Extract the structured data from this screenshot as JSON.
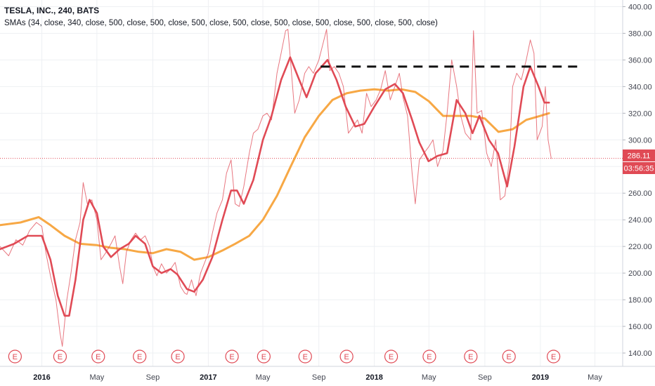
{
  "header": {
    "title": "TESLA, INC., 240, BATS",
    "indicator": "SMAs (34, close, 340, close, 500, close, 500, close, 500, close, 500, close, 500, close, 500, close, 500, close, 500, close)"
  },
  "price_badge": {
    "value": "286.11",
    "countdown": "03:56:35",
    "color": "#e04a55"
  },
  "event_marker_label": "E",
  "colors": {
    "price": "#e04a55",
    "sma_fast": "#e04a55",
    "sma_slow": "#f7a845",
    "resistance": "#111111",
    "grid": "#eef0f3"
  },
  "chart_data": {
    "type": "line",
    "y_axis": {
      "min": 130,
      "max": 405,
      "ticks": [
        "140.00",
        "160.00",
        "180.00",
        "200.00",
        "220.00",
        "240.00",
        "260.00",
        "280.00",
        "300.00",
        "320.00",
        "340.00",
        "360.00",
        "380.00",
        "400.00"
      ],
      "position": "right"
    },
    "x_axis": {
      "range": [
        "2015-10-01",
        "2019-07-01"
      ],
      "ticks": [
        {
          "label": "2016",
          "date": "2016-01-01",
          "bold": true
        },
        {
          "label": "May",
          "date": "2016-05-01",
          "bold": false
        },
        {
          "label": "Sep",
          "date": "2016-09-01",
          "bold": false
        },
        {
          "label": "2017",
          "date": "2017-01-01",
          "bold": true
        },
        {
          "label": "May",
          "date": "2017-05-01",
          "bold": false
        },
        {
          "label": "Sep",
          "date": "2017-09-01",
          "bold": false
        },
        {
          "label": "2018",
          "date": "2018-01-01",
          "bold": true
        },
        {
          "label": "May",
          "date": "2018-05-01",
          "bold": false
        },
        {
          "label": "Sep",
          "date": "2018-09-01",
          "bold": false
        },
        {
          "label": "2019",
          "date": "2019-01-01",
          "bold": true
        },
        {
          "label": "May",
          "date": "2019-05-01",
          "bold": false
        }
      ]
    },
    "series": [
      {
        "kind": "price",
        "color": "#e04a55",
        "points": [
          [
            "2015-10-01",
            220
          ],
          [
            "2015-10-20",
            213
          ],
          [
            "2015-11-05",
            225
          ],
          [
            "2015-11-20",
            221
          ],
          [
            "2015-12-05",
            232
          ],
          [
            "2015-12-20",
            238
          ],
          [
            "2016-01-01",
            235
          ],
          [
            "2016-01-10",
            215
          ],
          [
            "2016-01-20",
            198
          ],
          [
            "2016-02-01",
            180
          ],
          [
            "2016-02-10",
            155
          ],
          [
            "2016-02-15",
            145
          ],
          [
            "2016-02-25",
            180
          ],
          [
            "2016-03-05",
            200
          ],
          [
            "2016-03-15",
            225
          ],
          [
            "2016-03-25",
            238
          ],
          [
            "2016-04-01",
            268
          ],
          [
            "2016-04-10",
            252
          ],
          [
            "2016-04-20",
            255
          ],
          [
            "2016-05-01",
            240
          ],
          [
            "2016-05-10",
            210
          ],
          [
            "2016-05-20",
            215
          ],
          [
            "2016-06-01",
            222
          ],
          [
            "2016-06-10",
            228
          ],
          [
            "2016-06-20",
            205
          ],
          [
            "2016-06-27",
            192
          ],
          [
            "2016-07-05",
            216
          ],
          [
            "2016-07-15",
            225
          ],
          [
            "2016-07-25",
            230
          ],
          [
            "2016-08-05",
            225
          ],
          [
            "2016-08-15",
            228
          ],
          [
            "2016-08-25",
            220
          ],
          [
            "2016-09-01",
            205
          ],
          [
            "2016-09-10",
            198
          ],
          [
            "2016-09-20",
            207
          ],
          [
            "2016-10-01",
            200
          ],
          [
            "2016-10-10",
            203
          ],
          [
            "2016-10-20",
            208
          ],
          [
            "2016-11-01",
            190
          ],
          [
            "2016-11-10",
            185
          ],
          [
            "2016-11-15",
            184
          ],
          [
            "2016-11-25",
            195
          ],
          [
            "2016-12-05",
            183
          ],
          [
            "2016-12-15",
            200
          ],
          [
            "2017-01-01",
            215
          ],
          [
            "2017-01-10",
            230
          ],
          [
            "2017-01-20",
            245
          ],
          [
            "2017-02-01",
            255
          ],
          [
            "2017-02-10",
            275
          ],
          [
            "2017-02-20",
            285
          ],
          [
            "2017-03-01",
            252
          ],
          [
            "2017-03-10",
            250
          ],
          [
            "2017-03-20",
            265
          ],
          [
            "2017-04-01",
            290
          ],
          [
            "2017-04-10",
            305
          ],
          [
            "2017-04-20",
            308
          ],
          [
            "2017-05-01",
            318
          ],
          [
            "2017-05-10",
            320
          ],
          [
            "2017-05-20",
            315
          ],
          [
            "2017-06-01",
            350
          ],
          [
            "2017-06-10",
            365
          ],
          [
            "2017-06-20",
            382
          ],
          [
            "2017-06-25",
            383
          ],
          [
            "2017-07-01",
            358
          ],
          [
            "2017-07-10",
            320
          ],
          [
            "2017-07-20",
            330
          ],
          [
            "2017-08-01",
            350
          ],
          [
            "2017-08-10",
            355
          ],
          [
            "2017-08-20",
            350
          ],
          [
            "2017-09-01",
            360
          ],
          [
            "2017-09-10",
            372
          ],
          [
            "2017-09-18",
            383
          ],
          [
            "2017-09-25",
            352
          ],
          [
            "2017-10-05",
            355
          ],
          [
            "2017-10-15",
            350
          ],
          [
            "2017-10-25",
            340
          ],
          [
            "2017-11-05",
            305
          ],
          [
            "2017-11-15",
            310
          ],
          [
            "2017-11-25",
            315
          ],
          [
            "2017-12-05",
            305
          ],
          [
            "2017-12-15",
            335
          ],
          [
            "2017-12-25",
            325
          ],
          [
            "2018-01-05",
            330
          ],
          [
            "2018-01-15",
            338
          ],
          [
            "2018-01-25",
            352
          ],
          [
            "2018-02-05",
            330
          ],
          [
            "2018-02-15",
            340
          ],
          [
            "2018-02-25",
            350
          ],
          [
            "2018-03-05",
            332
          ],
          [
            "2018-03-15",
            318
          ],
          [
            "2018-03-25",
            275
          ],
          [
            "2018-04-01",
            252
          ],
          [
            "2018-04-10",
            285
          ],
          [
            "2018-04-20",
            290
          ],
          [
            "2018-05-01",
            295
          ],
          [
            "2018-05-10",
            300
          ],
          [
            "2018-05-20",
            280
          ],
          [
            "2018-06-01",
            292
          ],
          [
            "2018-06-10",
            320
          ],
          [
            "2018-06-20",
            360
          ],
          [
            "2018-07-01",
            340
          ],
          [
            "2018-07-10",
            318
          ],
          [
            "2018-07-20",
            305
          ],
          [
            "2018-08-01",
            300
          ],
          [
            "2018-08-07",
            382
          ],
          [
            "2018-08-15",
            320
          ],
          [
            "2018-08-25",
            322
          ],
          [
            "2018-09-05",
            290
          ],
          [
            "2018-09-15",
            280
          ],
          [
            "2018-09-25",
            300
          ],
          [
            "2018-10-05",
            255
          ],
          [
            "2018-10-15",
            258
          ],
          [
            "2018-10-25",
            285
          ],
          [
            "2018-11-01",
            340
          ],
          [
            "2018-11-10",
            350
          ],
          [
            "2018-11-20",
            345
          ],
          [
            "2018-12-01",
            360
          ],
          [
            "2018-12-10",
            375
          ],
          [
            "2018-12-18",
            365
          ],
          [
            "2018-12-25",
            300
          ],
          [
            "2019-01-05",
            310
          ],
          [
            "2019-01-12",
            340
          ],
          [
            "2019-01-18",
            300
          ],
          [
            "2019-01-25",
            286
          ]
        ]
      },
      {
        "kind": "sma_fast",
        "color": "#e04a55",
        "points": [
          [
            "2015-10-01",
            218
          ],
          [
            "2015-11-01",
            222
          ],
          [
            "2015-12-01",
            228
          ],
          [
            "2016-01-01",
            228
          ],
          [
            "2016-01-20",
            210
          ],
          [
            "2016-02-05",
            183
          ],
          [
            "2016-02-20",
            168
          ],
          [
            "2016-03-01",
            168
          ],
          [
            "2016-03-15",
            195
          ],
          [
            "2016-04-01",
            240
          ],
          [
            "2016-04-15",
            255
          ],
          [
            "2016-05-01",
            245
          ],
          [
            "2016-05-15",
            220
          ],
          [
            "2016-06-01",
            212
          ],
          [
            "2016-06-20",
            218
          ],
          [
            "2016-07-10",
            222
          ],
          [
            "2016-07-25",
            228
          ],
          [
            "2016-08-15",
            222
          ],
          [
            "2016-09-01",
            205
          ],
          [
            "2016-09-20",
            200
          ],
          [
            "2016-10-10",
            203
          ],
          [
            "2016-10-25",
            199
          ],
          [
            "2016-11-15",
            188
          ],
          [
            "2016-12-01",
            186
          ],
          [
            "2016-12-20",
            195
          ],
          [
            "2017-01-10",
            212
          ],
          [
            "2017-02-01",
            240
          ],
          [
            "2017-02-20",
            262
          ],
          [
            "2017-03-05",
            262
          ],
          [
            "2017-03-20",
            252
          ],
          [
            "2017-04-10",
            270
          ],
          [
            "2017-05-01",
            300
          ],
          [
            "2017-05-20",
            318
          ],
          [
            "2017-06-10",
            345
          ],
          [
            "2017-06-30",
            362
          ],
          [
            "2017-07-20",
            345
          ],
          [
            "2017-08-05",
            332
          ],
          [
            "2017-08-25",
            350
          ],
          [
            "2017-09-20",
            360
          ],
          [
            "2017-10-10",
            345
          ],
          [
            "2017-10-30",
            325
          ],
          [
            "2017-11-20",
            310
          ],
          [
            "2017-12-10",
            312
          ],
          [
            "2018-01-01",
            325
          ],
          [
            "2018-01-25",
            338
          ],
          [
            "2018-02-15",
            342
          ],
          [
            "2018-03-05",
            335
          ],
          [
            "2018-03-25",
            315
          ],
          [
            "2018-04-10",
            298
          ],
          [
            "2018-04-30",
            284
          ],
          [
            "2018-05-20",
            288
          ],
          [
            "2018-06-10",
            290
          ],
          [
            "2018-07-01",
            330
          ],
          [
            "2018-07-20",
            320
          ],
          [
            "2018-08-05",
            305
          ],
          [
            "2018-08-20",
            318
          ],
          [
            "2018-09-10",
            300
          ],
          [
            "2018-09-30",
            290
          ],
          [
            "2018-10-20",
            265
          ],
          [
            "2018-11-05",
            295
          ],
          [
            "2018-11-25",
            340
          ],
          [
            "2018-12-10",
            355
          ],
          [
            "2018-12-28",
            340
          ],
          [
            "2019-01-10",
            328
          ],
          [
            "2019-01-20",
            328
          ]
        ]
      },
      {
        "kind": "sma_slow",
        "color": "#f7a845",
        "points": [
          [
            "2015-10-01",
            236
          ],
          [
            "2015-11-15",
            238
          ],
          [
            "2015-12-25",
            242
          ],
          [
            "2016-01-20",
            236
          ],
          [
            "2016-02-20",
            228
          ],
          [
            "2016-03-25",
            222
          ],
          [
            "2016-05-01",
            221
          ],
          [
            "2016-06-01",
            219
          ],
          [
            "2016-07-01",
            218
          ],
          [
            "2016-08-01",
            216
          ],
          [
            "2016-09-01",
            215
          ],
          [
            "2016-10-01",
            218
          ],
          [
            "2016-11-01",
            216
          ],
          [
            "2016-12-01",
            210
          ],
          [
            "2017-01-01",
            212
          ],
          [
            "2017-02-01",
            217
          ],
          [
            "2017-03-01",
            222
          ],
          [
            "2017-04-01",
            228
          ],
          [
            "2017-05-01",
            240
          ],
          [
            "2017-06-01",
            258
          ],
          [
            "2017-07-01",
            280
          ],
          [
            "2017-08-01",
            302
          ],
          [
            "2017-09-01",
            318
          ],
          [
            "2017-10-01",
            330
          ],
          [
            "2017-11-01",
            335
          ],
          [
            "2017-12-01",
            337
          ],
          [
            "2018-01-01",
            338
          ],
          [
            "2018-02-01",
            337
          ],
          [
            "2018-03-01",
            338
          ],
          [
            "2018-04-01",
            336
          ],
          [
            "2018-05-01",
            329
          ],
          [
            "2018-06-01",
            318
          ],
          [
            "2018-07-01",
            318
          ],
          [
            "2018-08-01",
            318
          ],
          [
            "2018-09-01",
            316
          ],
          [
            "2018-10-01",
            306
          ],
          [
            "2018-11-01",
            308
          ],
          [
            "2018-12-01",
            315
          ],
          [
            "2019-01-01",
            318
          ],
          [
            "2019-01-20",
            320
          ]
        ]
      }
    ],
    "resistance_line": {
      "y": 355,
      "x_start": "2017-09-05",
      "x_end": "2019-04-01",
      "style": "dashed"
    },
    "current_price_line": {
      "y": 286.11,
      "style": "dotted"
    },
    "earnings_markers": [
      "2015-11-03",
      "2016-02-10",
      "2016-05-04",
      "2016-08-03",
      "2016-10-26",
      "2017-02-22",
      "2017-05-03",
      "2017-08-02",
      "2017-11-01",
      "2018-02-07",
      "2018-05-02",
      "2018-08-01",
      "2018-10-24",
      "2019-01-30"
    ]
  }
}
